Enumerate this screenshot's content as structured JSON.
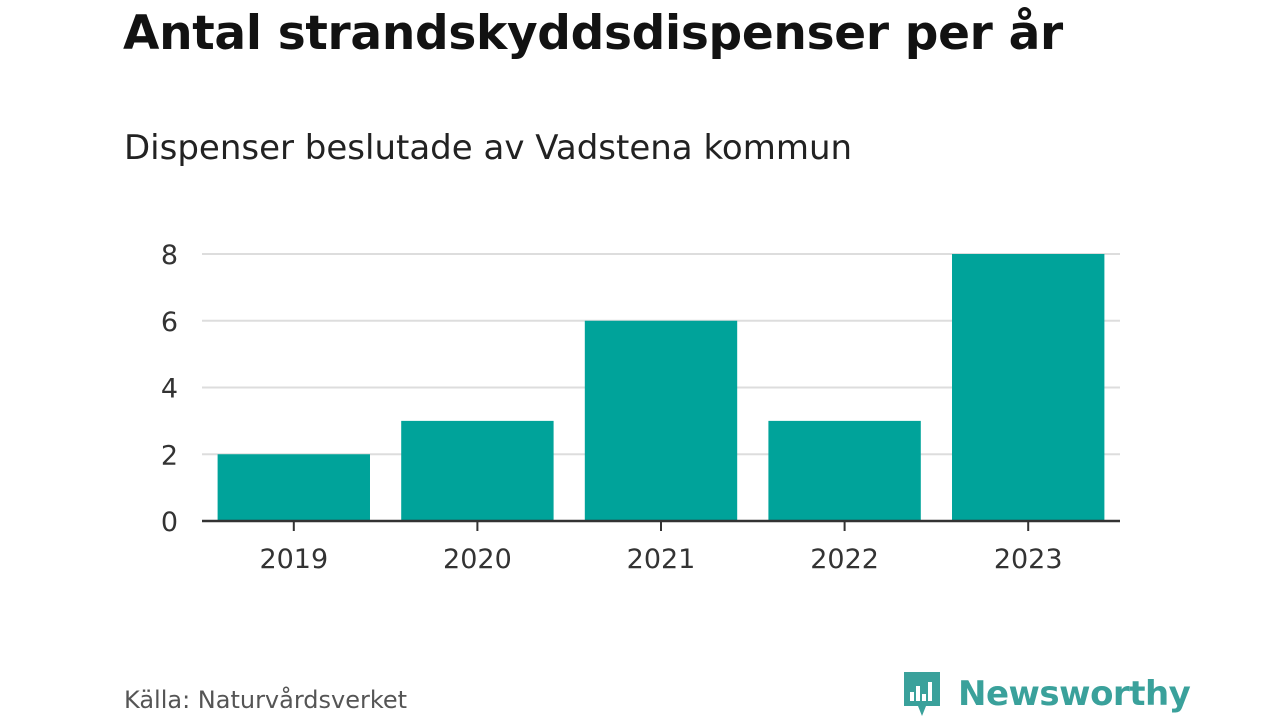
{
  "header": {
    "title": "Antal strandskyddsdispenser per år",
    "subtitle": "Dispenser beslutade av Vadstena kommun"
  },
  "footer": {
    "source": "Källa: Naturvårdsverket",
    "brand": "Newsworthy",
    "brand_icon": "newsworthy-logo-icon"
  },
  "colors": {
    "bar": "#00A39A",
    "grid": "#DDDDDD",
    "axis": "#333333",
    "brand": "#3AA19B"
  },
  "chart_data": {
    "type": "bar",
    "title": "Antal strandskyddsdispenser per år",
    "subtitle": "Dispenser beslutade av Vadstena kommun",
    "categories": [
      "2019",
      "2020",
      "2021",
      "2022",
      "2023"
    ],
    "values": [
      2,
      3,
      6,
      3,
      8
    ],
    "xlabel": "",
    "ylabel": "",
    "ylim": [
      0,
      8
    ],
    "yticks": [
      "0",
      "2",
      "4",
      "6",
      "8"
    ],
    "grid": true
  }
}
